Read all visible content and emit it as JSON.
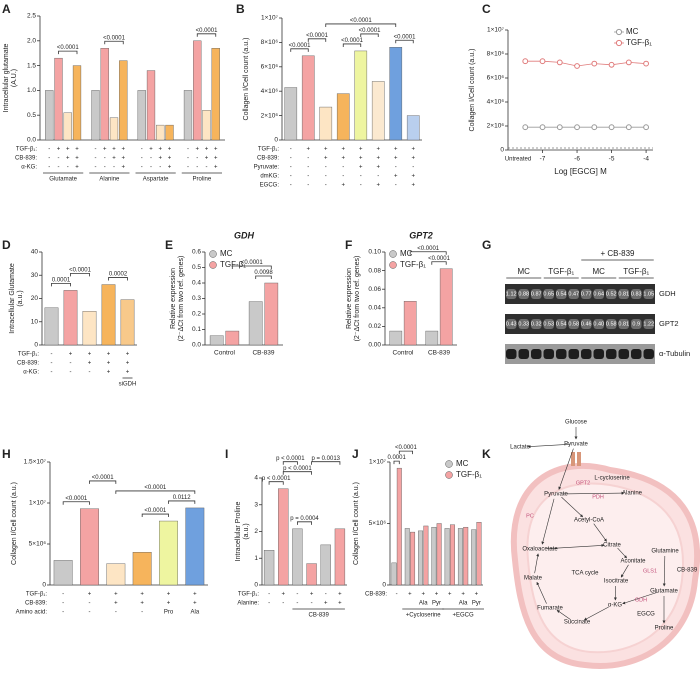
{
  "chart_data": [
    {
      "type": "bar",
      "panel": "A",
      "ylabel": [
        "Intracellular glutamate",
        "(A.U.)"
      ],
      "ylim": [
        0,
        2.5
      ],
      "yticks": [
        {
          "value": 0,
          "label": "0.0"
        },
        {
          "value": 0.5,
          "label": "0.5"
        },
        {
          "value": 1,
          "label": "1.0"
        },
        {
          "value": 1.5,
          "label": "1.5"
        },
        {
          "value": 2,
          "label": "2.0"
        },
        {
          "value": 2.5,
          "label": "2.5"
        }
      ],
      "categories": [
        "Glutamate",
        "Alanine",
        "Aspartate",
        "Proline"
      ],
      "series": [
        {
          "color": "#c9c9c9",
          "values": [
            1.0,
            1.0,
            1.0,
            1.0
          ]
        },
        {
          "color": "#f4a3a3",
          "values": [
            1.65,
            1.85,
            1.4,
            2.0
          ]
        },
        {
          "color": "#fde5c4",
          "values": [
            0.55,
            0.45,
            0.3,
            0.6
          ]
        },
        {
          "color": "#f6b45c",
          "values": [
            1.5,
            1.6,
            0.3,
            1.85
          ]
        }
      ],
      "conditions": [
        {
          "label": "TGF-β₁:",
          "marks": [
            "-",
            "+",
            "+",
            "+",
            "-",
            "+",
            "+",
            "+",
            "-",
            "+",
            "+",
            "+",
            "-",
            "+",
            "+",
            "+"
          ]
        },
        {
          "label": "CB-839:",
          "marks": [
            "-",
            "-",
            "+",
            "+",
            "-",
            "-",
            "+",
            "+",
            "-",
            "-",
            "+",
            "+",
            "-",
            "-",
            "+",
            "+"
          ]
        },
        {
          "label": "α-KG:",
          "marks": [
            "-",
            "-",
            "-",
            "+",
            "-",
            "-",
            "-",
            "+",
            "-",
            "-",
            "-",
            "+",
            "-",
            "-",
            "-",
            "+"
          ]
        }
      ],
      "brackets": [
        {
          "text": "<0.0001",
          "from": 1,
          "to": 3
        },
        {
          "text": "<0.0001",
          "from": 5,
          "to": 7
        },
        {
          "text": "<0.0001",
          "from": 13,
          "to": 15
        }
      ]
    },
    {
      "type": "bar",
      "panel": "B",
      "ylabel": [
        "Collagen I/Cell count (a.u.)"
      ],
      "ylim": [
        0,
        10000000
      ],
      "yticks": [
        0,
        {
          "value": 2000000,
          "label": "2×10⁶"
        },
        {
          "value": 4000000,
          "label": "4×10⁶"
        },
        {
          "value": 6000000,
          "label": "6×10⁶"
        },
        {
          "value": 8000000,
          "label": "8×10⁶"
        },
        {
          "value": 10000000,
          "label": "1×10⁷"
        }
      ],
      "values": [
        4300000,
        6900000,
        2700000,
        3800000,
        7300000,
        4800000,
        7600000,
        2000000
      ],
      "colors": [
        "#c9c9c9",
        "#f4a3a3",
        "#fde5c4",
        "#f6b45c",
        "#eef5a0",
        "#fbe9d0",
        "#6fa0de",
        "#b9cfee"
      ],
      "conditions": [
        {
          "label": "TGF-β₁:",
          "marks": [
            "-",
            "+",
            "+",
            "+",
            "+",
            "+",
            "+",
            "+"
          ]
        },
        {
          "label": "CB-839:",
          "marks": [
            "-",
            "-",
            "+",
            "+",
            "+",
            "+",
            "+",
            "+"
          ]
        },
        {
          "label": "Pyruvate:",
          "marks": [
            "-",
            "-",
            "-",
            "-",
            "+",
            "+",
            "-",
            "-"
          ]
        },
        {
          "label": "dmKG:",
          "marks": [
            "-",
            "-",
            "-",
            "-",
            "-",
            "-",
            "+",
            "+"
          ]
        },
        {
          "label": "EGCG:",
          "marks": [
            "-",
            "-",
            "-",
            "+",
            "-",
            "+",
            "-",
            "+"
          ]
        }
      ],
      "brackets": [
        {
          "text": "<0.0001",
          "from": 0,
          "to": 1
        },
        {
          "text": "<0.0001",
          "from": 1,
          "to": 2
        },
        {
          "text": "<0.0001",
          "from": 3,
          "to": 4
        },
        {
          "text": "<0.0001",
          "from": 4,
          "to": 5
        },
        {
          "text": "<0.0001",
          "from": 6,
          "to": 7
        },
        {
          "text": "<0.0001",
          "from": 2,
          "to": 6
        }
      ]
    },
    {
      "type": "line",
      "panel": "C",
      "ylabel": [
        "Collagen I/Cell count (a.u.)"
      ],
      "xlabel": "Log [EGCG] M",
      "untreated_label": "Untreated",
      "xlim": [
        -8,
        -3.8
      ],
      "xticks": [
        -7,
        -6,
        -5,
        -4
      ],
      "ylim": [
        0,
        10000000
      ],
      "yticks": [
        0,
        {
          "value": 2000000,
          "label": "2×10⁶"
        },
        {
          "value": 4000000,
          "label": "4×10⁶"
        },
        {
          "value": 6000000,
          "label": "6×10⁶"
        },
        {
          "value": 8000000,
          "label": "8×10⁶"
        },
        {
          "value": 10000000,
          "label": "1×10⁷"
        }
      ],
      "x": [
        -7.5,
        -7,
        -6.5,
        -6,
        -5.5,
        -5,
        -4.5,
        -4
      ],
      "series": [
        {
          "name": "MC",
          "color": "#9a9a9a",
          "values": [
            1900000,
            1900000,
            1900000,
            1900000,
            1900000,
            1900000,
            1900000,
            1900000
          ]
        },
        {
          "name": "TGF-β₁",
          "color": "#e07b7b",
          "values": [
            7400000,
            7400000,
            7300000,
            7000000,
            7200000,
            7100000,
            7300000,
            7200000
          ]
        }
      ],
      "legend": "upper right"
    },
    {
      "type": "bar",
      "panel": "D",
      "ylabel": [
        "Intracellular Glutamate",
        "(a.u.)"
      ],
      "ylim": [
        0,
        40
      ],
      "yticks": [
        0,
        10,
        20,
        30,
        40
      ],
      "values": [
        16,
        23.5,
        14.5,
        26,
        19.5
      ],
      "colors": [
        "#c9c9c9",
        "#f4a3a3",
        "#fde5c4",
        "#f6b45c",
        "#f8c98a"
      ],
      "conditions": [
        {
          "label": "TGF-β₁:",
          "marks": [
            "-",
            "+",
            "+",
            "+",
            "+"
          ]
        },
        {
          "label": "CB-839:",
          "marks": [
            "-",
            "-",
            "+",
            "+",
            "+"
          ]
        },
        {
          "label": "α-KG:",
          "marks": [
            "-",
            "-",
            "-",
            "+",
            "+"
          ]
        }
      ],
      "sublabels": [
        {
          "text": "siGDH",
          "from": 4,
          "to": 4
        }
      ],
      "brackets": [
        {
          "text": "0.0001",
          "from": 0,
          "to": 1
        },
        {
          "text": "<0.0001",
          "from": 1,
          "to": 2
        },
        {
          "text": "0.0002",
          "from": 3,
          "to": 4
        }
      ]
    },
    {
      "type": "bar",
      "panel": "E",
      "title": "GDH",
      "ylabel": [
        "Relative expression",
        "(2⁻ΔCt from two ref. genes)"
      ],
      "ylim": [
        0,
        0.6
      ],
      "yticks": [
        {
          "value": 0,
          "label": "0.0"
        },
        0.1,
        0.2,
        0.3,
        0.4,
        0.5,
        0.6
      ],
      "categories": [
        "Control",
        "CB-839"
      ],
      "series": [
        {
          "name": "MC",
          "color": "#c9c9c9",
          "values": [
            0.06,
            0.28
          ]
        },
        {
          "name": "TGF-β₁",
          "color": "#f4a3a3",
          "values": [
            0.09,
            0.4
          ]
        }
      ],
      "legend": "upper left",
      "brackets": [
        {
          "text": "0.0098",
          "from": 2,
          "to": 3
        },
        {
          "text": "<0.0001",
          "from": 1,
          "to": 3
        }
      ]
    },
    {
      "type": "bar",
      "panel": "F",
      "title": "GPT2",
      "ylabel": [
        "Relative expression",
        "(2⁻ΔCt from two ref. genes)"
      ],
      "ylim": [
        0,
        0.1
      ],
      "yticks": [
        {
          "value": 0,
          "label": "0.00"
        },
        {
          "value": 0.02,
          "label": "0.02"
        },
        {
          "value": 0.04,
          "label": "0.04"
        },
        {
          "value": 0.06,
          "label": "0.06"
        },
        {
          "value": 0.08,
          "label": "0.08"
        },
        {
          "value": 0.1,
          "label": "0.10"
        }
      ],
      "categories": [
        "Control",
        "CB-839"
      ],
      "series": [
        {
          "name": "MC",
          "color": "#c9c9c9",
          "values": [
            0.015,
            0.015
          ]
        },
        {
          "name": "TGF-β₁",
          "color": "#f4a3a3",
          "values": [
            0.047,
            0.082
          ]
        }
      ],
      "legend": "upper left",
      "brackets": [
        {
          "text": "<0.0001",
          "from": 2,
          "to": 3
        },
        {
          "text": "<0.0001",
          "from": 1,
          "to": 3
        }
      ]
    },
    {
      "type": "blot",
      "panel": "G",
      "header": "+ CB-839",
      "groups": [
        "MC",
        "TGF-β₁",
        "MC",
        "TGF-β₁"
      ],
      "rows": [
        {
          "label": "GDH",
          "values": [
            "1.12",
            "0.88",
            "0.87",
            "0.65",
            "0.54",
            "0.47",
            "0.77",
            "0.64",
            "0.52",
            "0.81",
            "0.83",
            "1.05"
          ]
        },
        {
          "label": "GPT2",
          "values": [
            "0.43",
            "0.33",
            "0.32",
            "0.53",
            "0.54",
            "0.58",
            "0.46",
            "0.40",
            "0.58",
            "0.81",
            "0.9",
            "1.22"
          ]
        },
        {
          "label": "α-Tubulin"
        }
      ]
    },
    {
      "type": "bar",
      "panel": "H",
      "ylabel": [
        "Collagen I/Cell count (a.u.)"
      ],
      "ylim": [
        0,
        15000000
      ],
      "yticks": [
        0,
        {
          "value": 5000000,
          "label": "5×10⁶"
        },
        {
          "value": 10000000,
          "label": "1×10⁷"
        },
        {
          "value": 15000000,
          "label": "1.5×10⁷"
        }
      ],
      "values": [
        3000000,
        9300000,
        2600000,
        4000000,
        7800000,
        9400000
      ],
      "colors": [
        "#c9c9c9",
        "#f4a3a3",
        "#fde5c4",
        "#f6b45c",
        "#eef5a0",
        "#6fa0de"
      ],
      "conditions": [
        {
          "label": "TGF-β₁:",
          "marks": [
            "-",
            "+",
            "+",
            "+",
            "+",
            "+"
          ]
        },
        {
          "label": "CB-839:",
          "marks": [
            "-",
            "-",
            "+",
            "+",
            "+",
            "+"
          ]
        },
        {
          "label": "Amino acid:",
          "marks": [
            "-",
            "-",
            "-",
            "-",
            "Pro",
            "Ala"
          ]
        }
      ],
      "brackets": [
        {
          "text": "<0.0001",
          "from": 0,
          "to": 1
        },
        {
          "text": "<0.0001",
          "from": 3,
          "to": 4
        },
        {
          "text": "0.0112",
          "from": 4,
          "to": 5
        },
        {
          "text": "<0.0001",
          "from": 2,
          "to": 5
        },
        {
          "text": "<0.0001",
          "from": 1,
          "to": 2
        }
      ]
    },
    {
      "type": "bar",
      "panel": "I",
      "ylabel": [
        "Intracellular Proline",
        "(a.u.)"
      ],
      "ylim": [
        0,
        4
      ],
      "yticks": [
        0,
        1,
        2,
        3,
        4
      ],
      "values": [
        1.3,
        3.6,
        2.1,
        0.8,
        1.5,
        2.1
      ],
      "colors": [
        "#c9c9c9",
        "#f4a3a3",
        "#c9c9c9",
        "#f4a3a3",
        "#c9c9c9",
        "#f4a3a3"
      ],
      "conditions": [
        {
          "label": "TGF-β₁:",
          "marks": [
            "-",
            "+",
            "-",
            "+",
            "-",
            "+"
          ]
        },
        {
          "label": "Alanine:",
          "marks": [
            "-",
            "-",
            "-",
            "-",
            "+",
            "+"
          ]
        }
      ],
      "sublabels": [
        {
          "text": "CB-839",
          "from": 2,
          "to": 5
        }
      ],
      "brackets": [
        {
          "text": "p < 0.0001",
          "from": 0,
          "to": 1
        },
        {
          "text": "p = 0.0004",
          "from": 2,
          "to": 3
        },
        {
          "text": "p < 0.0001",
          "from": 1,
          "to": 3
        },
        {
          "text": "p = 0.0013",
          "from": 3,
          "to": 5
        },
        {
          "text": "p < 0.0001",
          "from": 1,
          "to": 2
        }
      ]
    },
    {
      "type": "bar",
      "panel": "J",
      "ylabel": [
        "Collagen I/Cell count (a.u.)"
      ],
      "ylim": [
        0,
        10000000
      ],
      "yticks": [
        0,
        {
          "value": 5000000,
          "label": "5×10⁶"
        },
        {
          "value": 10000000,
          "label": "1×10⁷"
        }
      ],
      "categories": [
        null,
        null,
        null,
        null,
        null,
        null,
        null
      ],
      "series": [
        {
          "name": "MC",
          "color": "#c9c9c9",
          "values": [
            1800000,
            4600000,
            4400000,
            4700000,
            4600000,
            4600000,
            4500000
          ]
        },
        {
          "name": "TGF-β₁",
          "color": "#f4a3a3",
          "values": [
            9500000,
            4300000,
            4800000,
            5000000,
            4900000,
            4700000,
            5100000
          ]
        }
      ],
      "legend": "upper right",
      "conditions": [
        {
          "label": "CB-839:",
          "marks": [
            "-",
            "+",
            "+",
            "+",
            "+",
            "+",
            "+"
          ]
        },
        {
          "marks": [
            null,
            null,
            "Ala",
            "Pyr",
            null,
            "Ala",
            "Pyr"
          ]
        }
      ],
      "sublabels": [
        {
          "text": "+Cycloserine",
          "from": 2,
          "to": 7
        },
        {
          "text": "+EGCG",
          "from": 8,
          "to": 13
        }
      ],
      "brackets": [
        {
          "text": "0.0001",
          "from": 0,
          "to": 1
        },
        {
          "text": "<0.0001",
          "from": 1,
          "to": 3
        }
      ]
    },
    {
      "type": "diagram",
      "panel": "K",
      "labels": [
        "Glucose",
        "Pyruvate",
        "Lactate",
        "L-cycloserine",
        "Alanine",
        "GPT2",
        "PDH",
        "Pyruvate",
        "Acetyl-CoA",
        "PC",
        "Oxaloacetate",
        "Citrate",
        "TCA cycle",
        "Malate",
        "Aconitate",
        "Isocitrate",
        "Fumarate",
        "α-KG",
        "Succinate",
        "Glutamine",
        "GLS1",
        "CB-839",
        "Glutamate",
        "GDH",
        "EGCG",
        "Proline"
      ]
    }
  ]
}
